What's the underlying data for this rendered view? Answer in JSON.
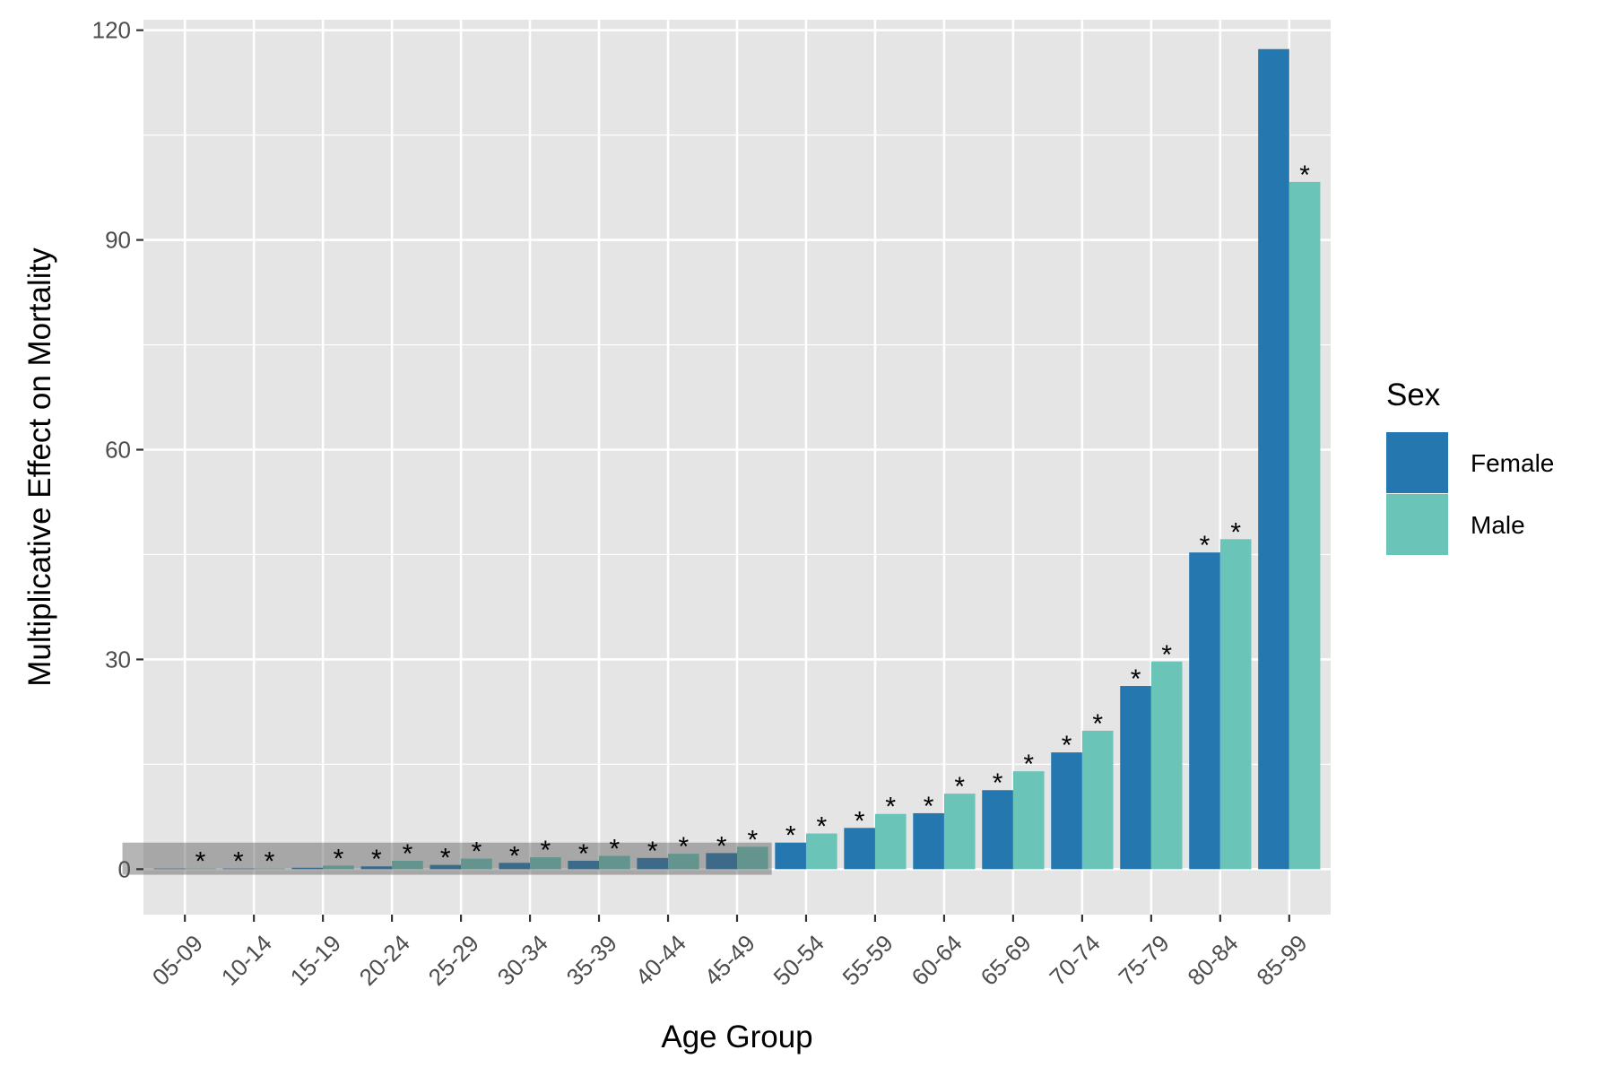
{
  "chart_data": {
    "type": "bar",
    "xlabel": "Age Group",
    "ylabel": "Multiplicative Effect on Mortality",
    "ylim": [
      -6.5,
      121.5
    ],
    "yticks": [
      0,
      30,
      60,
      90,
      120
    ],
    "categories": [
      "05-09",
      "10-14",
      "15-19",
      "20-24",
      "25-29",
      "30-34",
      "35-39",
      "40-44",
      "45-49",
      "50-54",
      "55-59",
      "60-64",
      "65-69",
      "70-74",
      "75-79",
      "80-84",
      "85-99"
    ],
    "legend": {
      "title": "Sex",
      "position": "right"
    },
    "series": [
      {
        "name": "Female",
        "color": "#2577B0",
        "values": [
          0.1,
          0.1,
          0.2,
          0.4,
          0.6,
          0.9,
          1.2,
          1.6,
          2.3,
          3.8,
          5.9,
          8.0,
          11.3,
          16.7,
          26.2,
          45.3,
          117.3
        ],
        "significant": [
          false,
          true,
          false,
          true,
          true,
          true,
          true,
          true,
          true,
          true,
          true,
          true,
          true,
          true,
          true,
          true,
          false
        ]
      },
      {
        "name": "Male",
        "color": "#6BC4B8",
        "values": [
          0.1,
          0.1,
          0.5,
          1.2,
          1.5,
          1.7,
          1.9,
          2.2,
          3.2,
          5.1,
          7.9,
          10.8,
          14.0,
          19.8,
          29.7,
          47.2,
          98.3
        ],
        "significant": [
          true,
          true,
          true,
          true,
          true,
          true,
          true,
          true,
          true,
          true,
          true,
          true,
          true,
          true,
          true,
          true,
          true
        ]
      }
    ],
    "annotation": {
      "marker": "*",
      "highlight_categories": [
        "05-09",
        "45-49"
      ],
      "highlight_value_range": [
        -0.8,
        3.8
      ]
    },
    "grid": true,
    "background": "#E5E5E5",
    "gridColor": "#FFFFFF"
  }
}
